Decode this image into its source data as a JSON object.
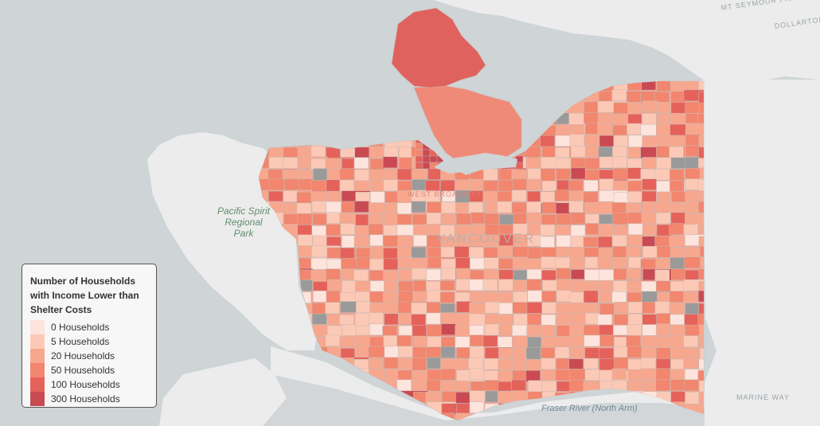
{
  "map": {
    "place_labels": {
      "park": "Pacific Spirit\nRegional\nPark",
      "city": "VANCOUVER",
      "broadway": "WEST BROADWAY",
      "river": "Fraser River (North Arm)"
    },
    "street_labels": {
      "mt_seymour": "MT SEYMOUR PARKWAY",
      "dollarton": "DOLLARTON",
      "marine": "MARINE WAY"
    },
    "colors": {
      "water": "#cfd4d6",
      "land": "#efefef",
      "no_data": "#9a9a9a",
      "border": "#c8bab4"
    }
  },
  "legend": {
    "title": "Number of Households with Income Lower than Shelter Costs",
    "items": [
      {
        "label": "0 Households",
        "color": "#fde4dd"
      },
      {
        "label": "5 Households",
        "color": "#fcc9b6"
      },
      {
        "label": "20 Households",
        "color": "#f7a78e"
      },
      {
        "label": "50 Households",
        "color": "#f2866e"
      },
      {
        "label": "100 Households",
        "color": "#e5625b"
      },
      {
        "label": "300 Households",
        "color": "#c94a53"
      }
    ]
  }
}
